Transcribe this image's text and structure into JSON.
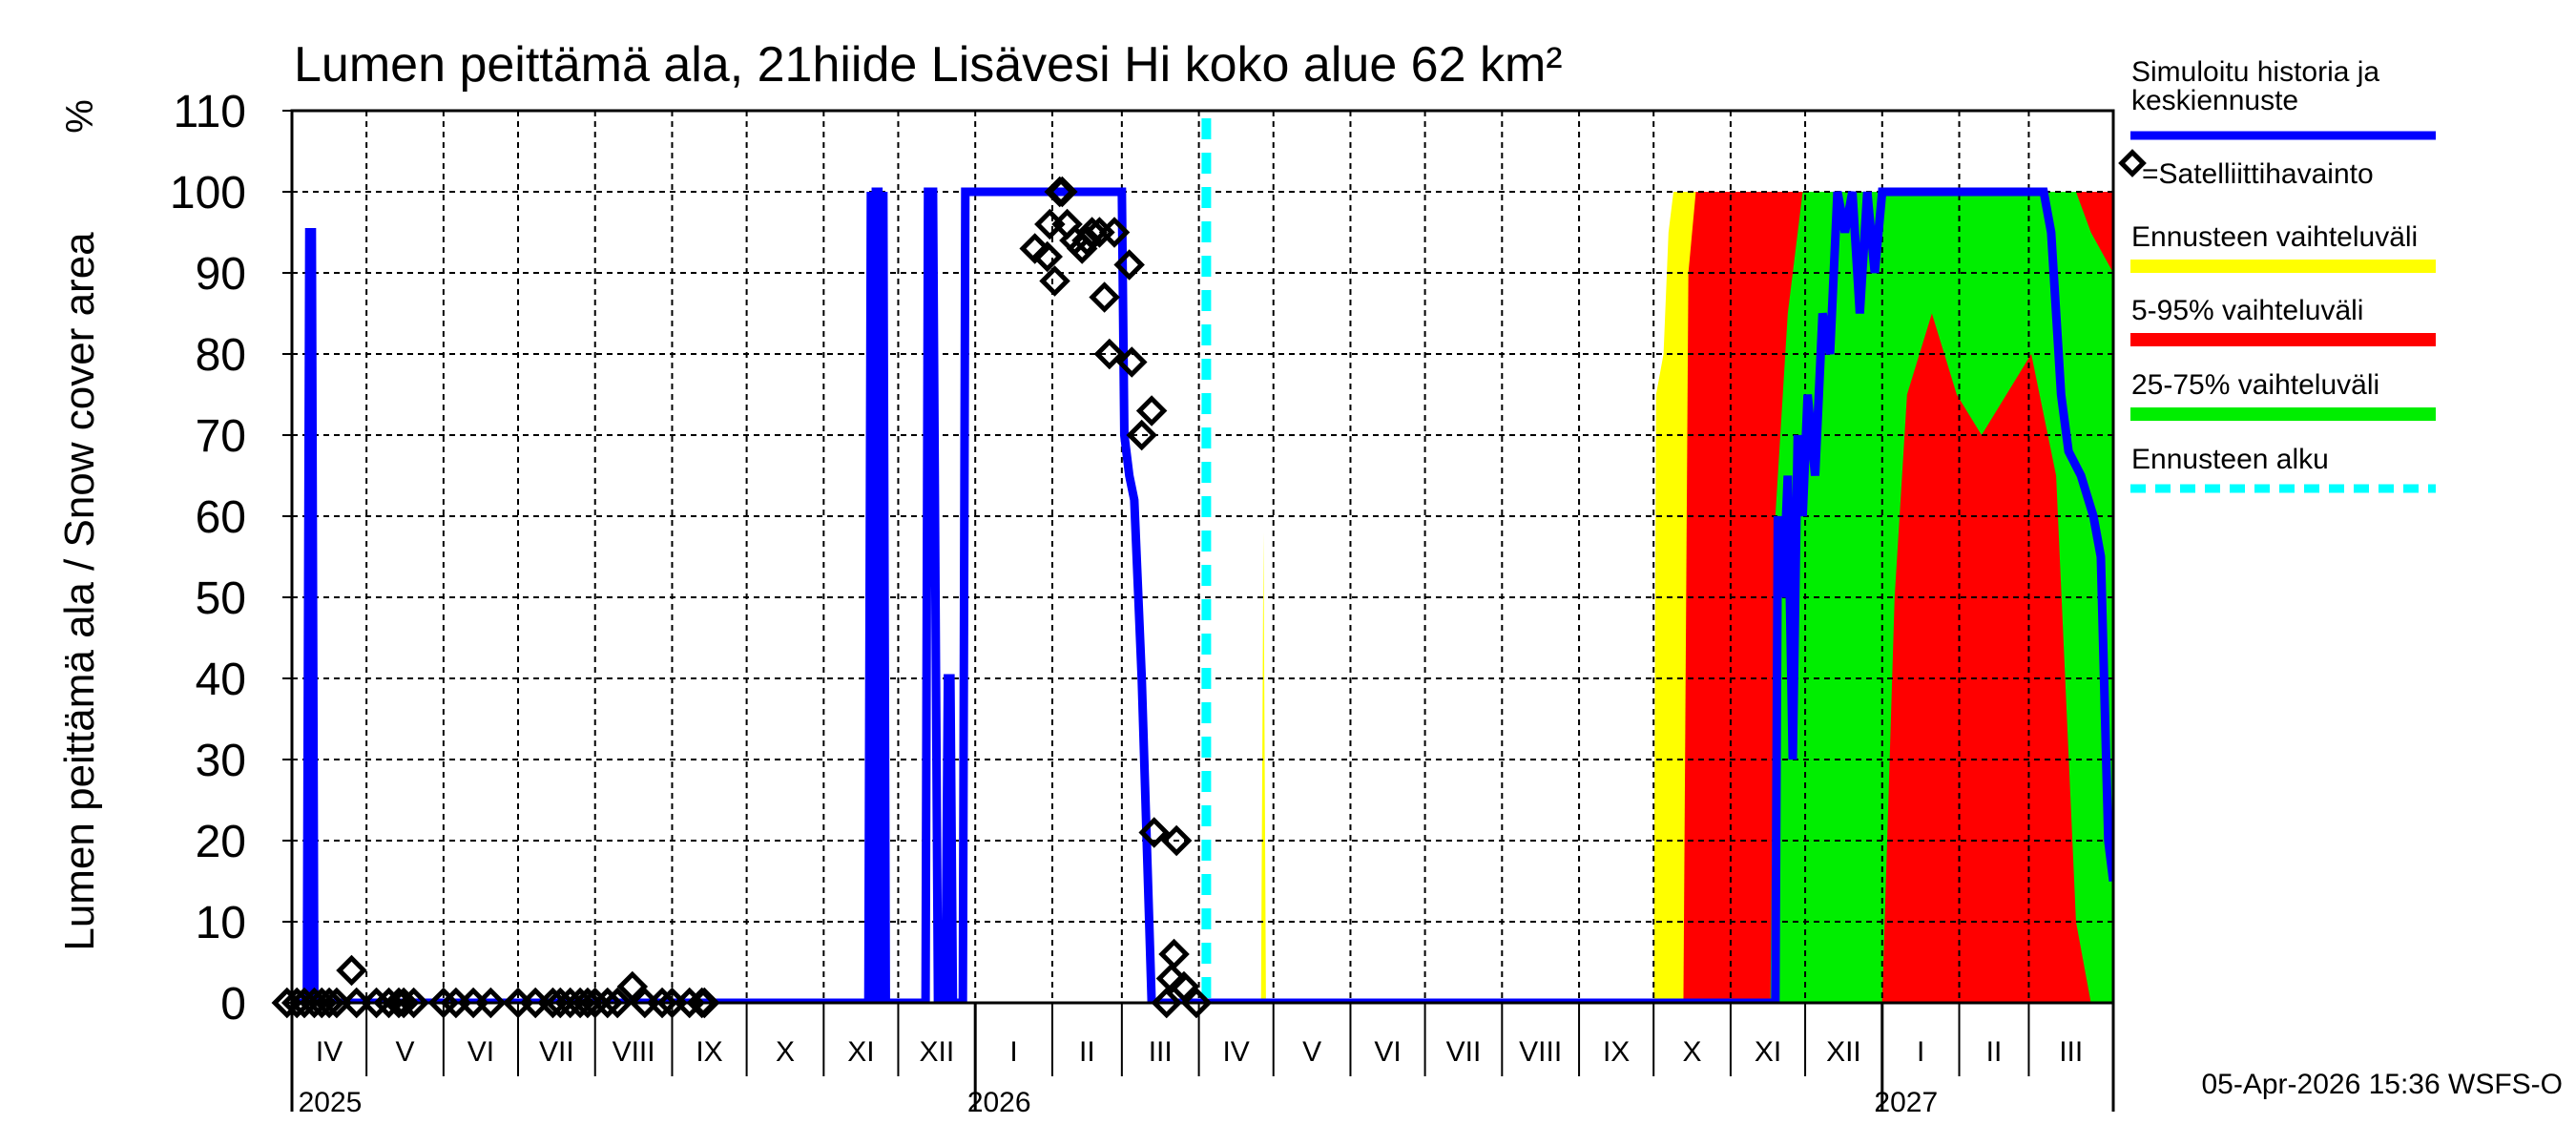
{
  "chart_data": {
    "type": "area",
    "title": "Lumen peittämä ala, 21hiide Lisävesi Hi koko alue 62 km²",
    "ylabel": "Lumen peittämä ala / Snow cover area",
    "yunit": "%",
    "ylim": [
      0,
      110
    ],
    "yticks": [
      0,
      10,
      20,
      30,
      40,
      50,
      60,
      70,
      80,
      90,
      100,
      110
    ],
    "x_origin": "2025-04-01",
    "x_unit": "days since 2025-04-01",
    "xlim": [
      0,
      733
    ],
    "grid": true,
    "legend_position": "right",
    "forecast_start_day": 368,
    "months": [
      {
        "label": "IV",
        "start": "2025-04-01"
      },
      {
        "label": "V",
        "start": "2025-05-01"
      },
      {
        "label": "VI",
        "start": "2025-06-01"
      },
      {
        "label": "VII",
        "start": "2025-07-01"
      },
      {
        "label": "VIII",
        "start": "2025-08-01"
      },
      {
        "label": "IX",
        "start": "2025-09-01"
      },
      {
        "label": "X",
        "start": "2025-10-01"
      },
      {
        "label": "XI",
        "start": "2025-11-01"
      },
      {
        "label": "XII",
        "start": "2025-12-01"
      },
      {
        "label": "I",
        "start": "2026-01-01"
      },
      {
        "label": "II",
        "start": "2026-02-01"
      },
      {
        "label": "III",
        "start": "2026-03-01"
      },
      {
        "label": "IV",
        "start": "2026-04-01"
      },
      {
        "label": "V",
        "start": "2026-05-01"
      },
      {
        "label": "VI",
        "start": "2026-06-01"
      },
      {
        "label": "VII",
        "start": "2026-07-01"
      },
      {
        "label": "VIII",
        "start": "2026-08-01"
      },
      {
        "label": "IX",
        "start": "2026-09-01"
      },
      {
        "label": "X",
        "start": "2026-10-01"
      },
      {
        "label": "XI",
        "start": "2026-11-01"
      },
      {
        "label": "XII",
        "start": "2026-12-01"
      },
      {
        "label": "I",
        "start": "2027-01-01"
      },
      {
        "label": "II",
        "start": "2027-02-01"
      },
      {
        "label": "III",
        "start": "2027-03-01"
      }
    ],
    "years": [
      {
        "label": "2025",
        "start": "2025-04-01"
      },
      {
        "label": "2026",
        "start": "2026-01-01"
      },
      {
        "label": "2027",
        "start": "2027-01-01"
      }
    ],
    "bands": [
      {
        "name": "Ennusteen vaihteluväli",
        "color": "#ffff00",
        "points": [
          [
            390,
            0,
            0
          ],
          [
            391,
            0,
            58
          ],
          [
            392,
            0,
            0
          ],
          [
            548,
            0,
            0
          ],
          [
            549,
            0,
            75
          ],
          [
            552,
            0,
            80
          ],
          [
            554,
            0,
            95
          ],
          [
            556,
            0,
            100
          ],
          [
            733,
            0,
            100
          ]
        ]
      },
      {
        "name": "5-95% vaihteluväli",
        "color": "#ff0000",
        "points": [
          [
            560,
            0,
            0
          ],
          [
            562,
            0,
            90
          ],
          [
            565,
            0,
            100
          ],
          [
            733,
            0,
            100
          ]
        ]
      },
      {
        "name": "25-75% vaihteluväli",
        "color": "#00ee00",
        "points": [
          [
            595,
            0,
            0
          ],
          [
            597,
            0,
            60
          ],
          [
            602,
            0,
            85
          ],
          [
            608,
            0,
            100
          ],
          [
            640,
            0,
            100
          ],
          [
            645,
            50,
            100
          ],
          [
            650,
            75,
            100
          ],
          [
            660,
            85,
            100
          ],
          [
            670,
            75,
            100
          ],
          [
            680,
            70,
            100
          ],
          [
            690,
            75,
            100
          ],
          [
            700,
            80,
            100
          ],
          [
            710,
            65,
            100
          ],
          [
            718,
            10,
            100
          ],
          [
            724,
            0,
            95
          ],
          [
            733,
            0,
            90
          ]
        ]
      }
    ],
    "series": [
      {
        "name": "Simuloitu historia ja keskiennuste",
        "color": "#0000ff",
        "points": [
          [
            0,
            0
          ],
          [
            6,
            0
          ],
          [
            7,
            95
          ],
          [
            8,
            95
          ],
          [
            9,
            0
          ],
          [
            232,
            0
          ],
          [
            233,
            100
          ],
          [
            234,
            0
          ],
          [
            235,
            100
          ],
          [
            236,
            100
          ],
          [
            237,
            0
          ],
          [
            238,
            100
          ],
          [
            239,
            0
          ],
          [
            241,
            0
          ],
          [
            255,
            0
          ],
          [
            256,
            100
          ],
          [
            258,
            100
          ],
          [
            260,
            0
          ],
          [
            263,
            0
          ],
          [
            264,
            40
          ],
          [
            265,
            40
          ],
          [
            266,
            0
          ],
          [
            270,
            0
          ],
          [
            271,
            100
          ],
          [
            334,
            100
          ],
          [
            335,
            70
          ],
          [
            337,
            65
          ],
          [
            339,
            62
          ],
          [
            342,
            40
          ],
          [
            344,
            20
          ],
          [
            346,
            0
          ],
          [
            597,
            0
          ],
          [
            598,
            60
          ],
          [
            600,
            50
          ],
          [
            602,
            65
          ],
          [
            604,
            30
          ],
          [
            606,
            70
          ],
          [
            608,
            60
          ],
          [
            610,
            75
          ],
          [
            613,
            65
          ],
          [
            616,
            85
          ],
          [
            619,
            80
          ],
          [
            622,
            100
          ],
          [
            625,
            95
          ],
          [
            628,
            100
          ],
          [
            631,
            85
          ],
          [
            634,
            100
          ],
          [
            637,
            90
          ],
          [
            640,
            100
          ],
          [
            705,
            100
          ],
          [
            708,
            95
          ],
          [
            712,
            75
          ],
          [
            715,
            68
          ],
          [
            720,
            65
          ],
          [
            725,
            60
          ],
          [
            728,
            55
          ],
          [
            731,
            20
          ],
          [
            733,
            15
          ]
        ]
      }
    ],
    "observations": {
      "name": "Satelliittihavainto",
      "points": [
        [
          -2,
          0
        ],
        [
          2,
          0
        ],
        [
          5,
          0
        ],
        [
          9,
          0
        ],
        [
          12,
          0
        ],
        [
          15,
          0
        ],
        [
          18,
          0
        ],
        [
          24,
          4
        ],
        [
          26,
          0
        ],
        [
          34,
          0
        ],
        [
          39,
          0
        ],
        [
          43,
          0
        ],
        [
          45,
          0
        ],
        [
          49,
          0
        ],
        [
          61,
          0
        ],
        [
          66,
          0
        ],
        [
          73,
          0
        ],
        [
          80,
          0
        ],
        [
          91,
          0
        ],
        [
          98,
          0
        ],
        [
          105,
          0
        ],
        [
          108,
          0
        ],
        [
          112,
          0
        ],
        [
          116,
          0
        ],
        [
          119,
          0
        ],
        [
          122,
          0
        ],
        [
          127,
          0
        ],
        [
          131,
          0
        ],
        [
          137,
          2
        ],
        [
          142,
          0
        ],
        [
          149,
          0
        ],
        [
          153,
          0
        ],
        [
          160,
          0
        ],
        [
          165,
          0
        ],
        [
          166,
          0
        ],
        [
          299,
          93
        ],
        [
          304,
          92
        ],
        [
          305,
          96
        ],
        [
          307,
          89
        ],
        [
          309,
          100
        ],
        [
          310,
          100
        ],
        [
          312,
          96
        ],
        [
          315,
          94
        ],
        [
          318,
          93
        ],
        [
          320,
          94
        ],
        [
          322,
          95
        ],
        [
          325,
          95
        ],
        [
          327,
          87
        ],
        [
          329,
          80
        ],
        [
          331,
          95
        ],
        [
          337,
          91
        ],
        [
          338,
          79
        ],
        [
          342,
          70
        ],
        [
          346,
          73
        ],
        [
          347,
          21
        ],
        [
          356,
          20
        ],
        [
          355,
          6
        ],
        [
          354,
          3
        ],
        [
          352,
          0
        ],
        [
          359,
          2
        ],
        [
          364,
          0
        ]
      ]
    }
  },
  "legend": {
    "history_line1": "Simuloitu historia ja",
    "history_line2": "keskiennuste",
    "observation": "=Satelliittihavainto",
    "range": "Ennusteen vaihteluväli",
    "p5_95": "5-95% vaihteluväli",
    "p25_75": "25-75% vaihteluväli",
    "forecast_start": "Ennusteen alku"
  },
  "colors": {
    "history": "#0000ff",
    "range": "#ffff00",
    "p5_95": "#ff0000",
    "p25_75": "#00ee00",
    "forecast_start": "#00ffff"
  },
  "footer": "05-Apr-2026 15:36 WSFS-O"
}
